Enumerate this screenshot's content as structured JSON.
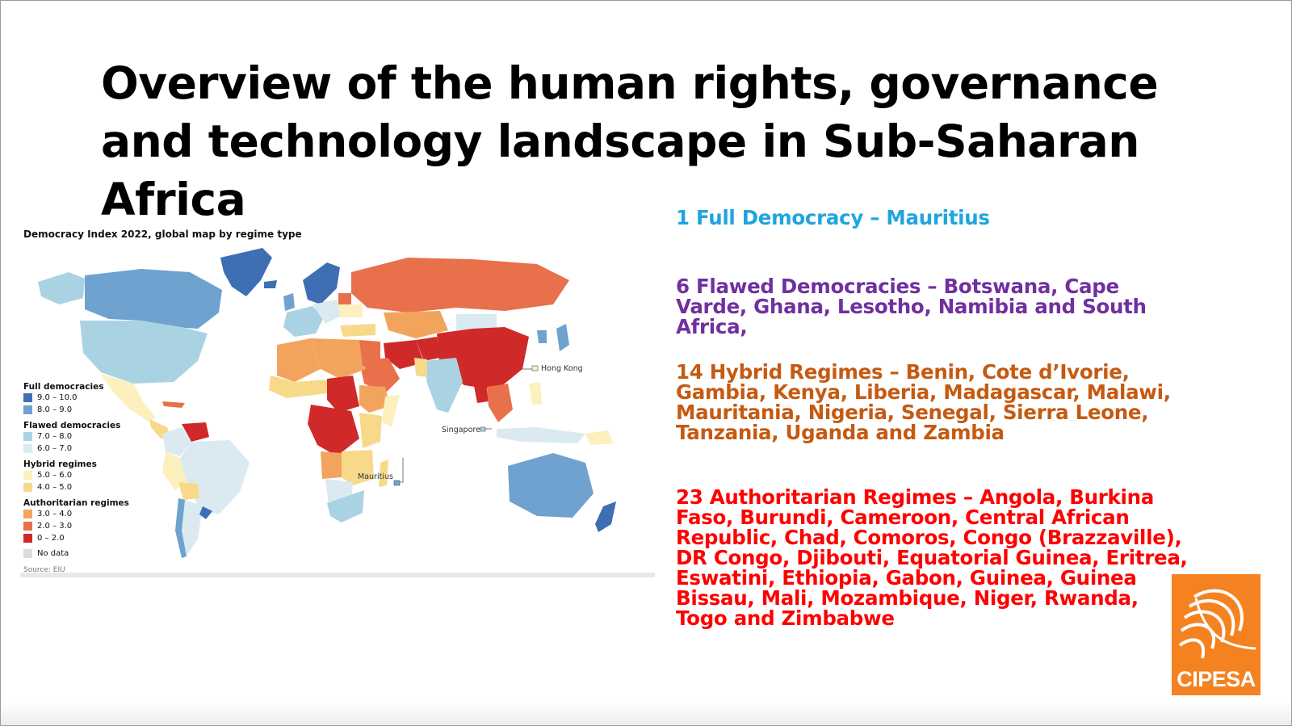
{
  "title": "Overview of the human rights, governance and technology landscape in Sub-Saharan Africa",
  "map": {
    "title": "Democracy Index 2022, global map by regime type",
    "source": "Source: EIU",
    "labels": {
      "hong_kong": "Hong Kong",
      "singapore": "Singapore",
      "mauritius": "Mauritius"
    },
    "legend": [
      {
        "heading": "Full democracies",
        "items": [
          {
            "label": "9.0 – 10.0",
            "color": "#3e6fb3"
          },
          {
            "label": "8.0 – 9.0",
            "color": "#6fa2cf"
          }
        ]
      },
      {
        "heading": "Flawed democracies",
        "items": [
          {
            "label": "7.0 – 8.0",
            "color": "#a9d3e3"
          },
          {
            "label": "6.0 – 7.0",
            "color": "#dbeaf1"
          }
        ]
      },
      {
        "heading": "Hybrid regimes",
        "items": [
          {
            "label": "5.0 – 6.0",
            "color": "#fbf0be"
          },
          {
            "label": "4.0 – 5.0",
            "color": "#f8d98a"
          }
        ]
      },
      {
        "heading": "Authoritarian regimes",
        "items": [
          {
            "label": "3.0 – 4.0",
            "color": "#f2a45c"
          },
          {
            "label": "2.0 – 3.0",
            "color": "#e8704a"
          },
          {
            "label": "0 – 2.0",
            "color": "#d0292a"
          }
        ]
      },
      {
        "heading": "",
        "items": [
          {
            "label": "No data",
            "color": "#dcdcdc"
          }
        ]
      }
    ]
  },
  "categories": {
    "full": {
      "text": "1 Full Democracy – Mauritius",
      "color": "#1fa5e0"
    },
    "flawed": {
      "text": "6 Flawed Democracies – Botswana, Cape Varde, Ghana, Lesotho, Namibia and South Africa,",
      "color": "#7030a0"
    },
    "hybrid": {
      "text": "14 Hybrid Regimes – Benin, Cote d’Ivorie, Gambia, Kenya, Liberia, Madagascar, Malawi, Mauritania, Nigeria, Senegal, Sierra Leone, Tanzania, Uganda and Zambia",
      "color": "#c55a11"
    },
    "authoritarian": {
      "text": "23 Authoritarian Regimes – Angola, Burkina Faso, Burundi, Cameroon, Central African Republic, Chad, Comoros, Congo (Brazzaville), DR Congo, Djibouti, Equatorial Guinea, Eritrea, Eswatini, Ethiopia, Gabon, Guinea, Guinea Bissau, Mali, Mozambique, Niger, Rwanda, Togo and Zimbabwe",
      "color": "#ff0000"
    }
  },
  "logo": {
    "text": "CIPESA",
    "color": "#f58220"
  }
}
